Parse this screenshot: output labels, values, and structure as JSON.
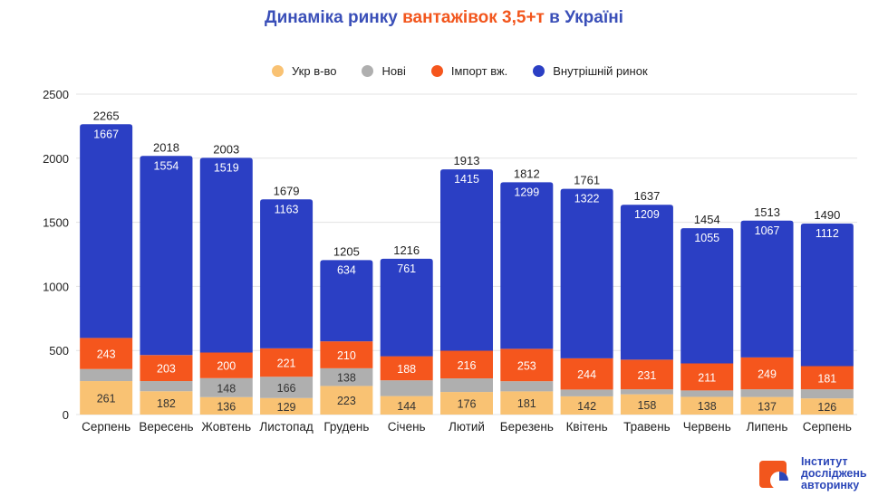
{
  "title": {
    "part1": "Динаміка ринку ",
    "part2": "вантажівок 3,5+т",
    "part3": " в Україні"
  },
  "colors": {
    "ukr": "#f9c273",
    "new": "#afafaf",
    "import": "#f5561d",
    "domestic": "#2b3fc4",
    "title_blue": "#3a4fb8",
    "title_orange": "#f2561d"
  },
  "logo": {
    "line1": "Інститут",
    "line2": "досліджень",
    "line3": "авторинку"
  },
  "chart_data": {
    "type": "bar",
    "stacked": true,
    "categories": [
      "Серпень",
      "Вересень",
      "Жовтень",
      "Листопад",
      "Грудень",
      "Січень",
      "Лютий",
      "Березень",
      "Квітень",
      "Травень",
      "Червень",
      "Липень",
      "Серпень"
    ],
    "series": [
      {
        "name": "Укр в-во",
        "key": "ukr",
        "values": [
          261,
          182,
          136,
          129,
          223,
          144,
          176,
          181,
          142,
          158,
          138,
          137,
          126
        ],
        "labels": [
          "261",
          "182",
          "136",
          "129",
          "223",
          "144",
          "176",
          "181",
          "142",
          "158",
          "138",
          "137",
          "126"
        ]
      },
      {
        "name": "Нові",
        "key": "new",
        "values": [
          94,
          79,
          148,
          166,
          138,
          123,
          106,
          79,
          53,
          39,
          50,
          60,
          71
        ],
        "labels": [
          "",
          "",
          "148",
          "166",
          "138",
          "",
          "",
          "",
          "",
          "",
          "",
          "",
          ""
        ]
      },
      {
        "name": "Імпорт вж.",
        "key": "import",
        "values": [
          243,
          203,
          200,
          221,
          210,
          188,
          216,
          253,
          244,
          231,
          211,
          249,
          181
        ],
        "labels": [
          "243",
          "203",
          "200",
          "221",
          "210",
          "188",
          "216",
          "253",
          "244",
          "231",
          "211",
          "249",
          "181"
        ]
      },
      {
        "name": "Внутрішній ринок",
        "key": "domestic",
        "values": [
          1667,
          1554,
          1519,
          1163,
          634,
          761,
          1415,
          1299,
          1322,
          1209,
          1055,
          1067,
          1112
        ],
        "labels": [
          "1667",
          "1554",
          "1519",
          "1163",
          "634",
          "761",
          "1415",
          "1299",
          "1322",
          "1209",
          "1055",
          "1067",
          "1112"
        ]
      }
    ],
    "totals": [
      2265,
      2018,
      2003,
      1679,
      1205,
      1216,
      1913,
      1812,
      1761,
      1637,
      1454,
      1513,
      1490
    ],
    "ylim": [
      0,
      2500
    ],
    "yticks": [
      0,
      500,
      1000,
      1500,
      2000,
      2500
    ],
    "ytick_labels": [
      "0",
      "500",
      "1000",
      "1500",
      "2000",
      "2500"
    ],
    "grid": true,
    "legend_position": "top-center"
  }
}
